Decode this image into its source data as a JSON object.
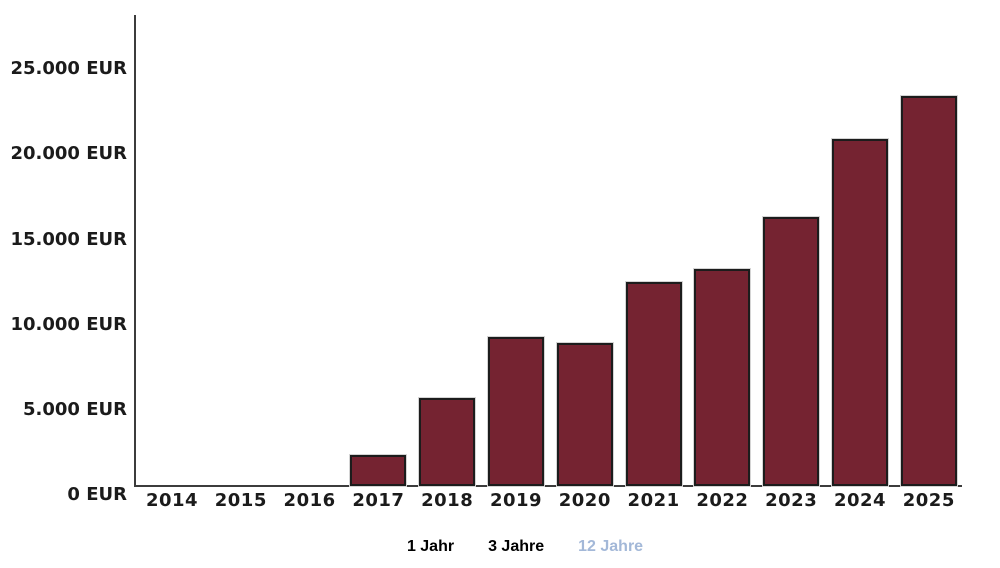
{
  "chart_data": {
    "type": "bar",
    "title": "",
    "xlabel": "",
    "ylabel": "EUR",
    "categories": [
      "2014",
      "2015",
      "2016",
      "2017",
      "2018",
      "2019",
      "2020",
      "2021",
      "2022",
      "2023",
      "2024",
      "2025"
    ],
    "values": [
      0,
      0,
      0,
      1800,
      5150,
      8750,
      8400,
      11950,
      12750,
      15800,
      20350,
      22900
    ],
    "y_ticks": [
      {
        "value": 0,
        "label": "0 EUR"
      },
      {
        "value": 5000,
        "label": "5.000 EUR"
      },
      {
        "value": 10000,
        "label": "10.000 EUR"
      },
      {
        "value": 15000,
        "label": "15.000 EUR"
      },
      {
        "value": 20000,
        "label": "20.000 EUR"
      },
      {
        "value": 25000,
        "label": "25.000 EUR"
      }
    ],
    "ylim": [
      0,
      27650
    ],
    "grid": false,
    "legend_position": "bottom-center",
    "bar_color": "#752331",
    "bar_border_color": "#1c1c1c",
    "axis_color": "#3c3c3c",
    "label_color": "#1b1b1b"
  },
  "legend": {
    "items": [
      {
        "label": "1 Jahr",
        "active": false
      },
      {
        "label": "3 Jahre",
        "active": false
      },
      {
        "label": "12 Jahre",
        "active": true
      }
    ],
    "active_color": "#a3b8d8",
    "inactive_color": "#000000"
  }
}
